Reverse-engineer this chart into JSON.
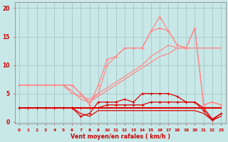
{
  "x": [
    0,
    1,
    2,
    3,
    4,
    5,
    6,
    7,
    8,
    9,
    10,
    11,
    12,
    13,
    14,
    15,
    16,
    17,
    18,
    19,
    20,
    21,
    22,
    23
  ],
  "salmon_line1": [
    6.5,
    6.5,
    6.5,
    6.5,
    6.5,
    6.5,
    6.5,
    5.0,
    3.5,
    5.0,
    10.0,
    11.5,
    13.0,
    13.0,
    13.0,
    16.0,
    18.5,
    16.0,
    13.5,
    13.0,
    16.5,
    3.0,
    3.5,
    3.0
  ],
  "salmon_line2": [
    6.5,
    6.5,
    6.5,
    6.5,
    6.5,
    6.5,
    6.5,
    5.0,
    3.0,
    6.5,
    11.0,
    11.5,
    13.0,
    13.0,
    13.0,
    16.0,
    16.5,
    16.0,
    13.5,
    13.0,
    16.5,
    3.0,
    3.5,
    3.0
  ],
  "salmon_diag1": [
    6.5,
    6.5,
    6.5,
    6.5,
    6.5,
    6.5,
    5.0,
    4.5,
    4.0,
    5.0,
    6.0,
    7.0,
    8.0,
    9.0,
    10.0,
    11.5,
    12.5,
    13.5,
    13.0,
    13.0,
    13.0,
    13.0,
    13.0,
    13.0
  ],
  "salmon_diag2": [
    6.5,
    6.5,
    6.5,
    6.5,
    6.5,
    6.5,
    5.5,
    4.0,
    3.5,
    4.5,
    5.5,
    6.5,
    7.5,
    8.5,
    9.5,
    10.5,
    11.5,
    12.0,
    13.0,
    13.0,
    13.0,
    13.0,
    13.0,
    13.0
  ],
  "red_upper": [
    2.5,
    2.5,
    2.5,
    2.5,
    2.5,
    2.5,
    2.5,
    1.0,
    1.5,
    3.5,
    3.5,
    3.5,
    4.0,
    3.5,
    5.0,
    5.0,
    5.0,
    5.0,
    4.5,
    3.5,
    3.5,
    2.0,
    0.3,
    1.5
  ],
  "red_flat1": [
    2.5,
    2.5,
    2.5,
    2.5,
    2.5,
    2.5,
    2.5,
    2.5,
    2.5,
    2.5,
    2.5,
    2.5,
    2.5,
    2.5,
    2.5,
    2.5,
    2.5,
    2.5,
    2.5,
    2.5,
    2.5,
    2.5,
    2.5,
    2.5
  ],
  "red_flat2": [
    2.5,
    2.5,
    2.5,
    2.5,
    2.5,
    2.5,
    2.5,
    2.5,
    2.5,
    2.5,
    3.0,
    3.0,
    3.0,
    3.0,
    3.0,
    3.5,
    3.5,
    3.5,
    3.5,
    3.5,
    3.5,
    2.5,
    0.5,
    1.5
  ],
  "red_low": [
    2.5,
    2.5,
    2.5,
    2.5,
    2.5,
    2.5,
    2.5,
    1.5,
    1.0,
    2.0,
    2.0,
    2.0,
    2.0,
    2.0,
    2.0,
    2.0,
    2.0,
    2.0,
    2.0,
    2.0,
    2.0,
    1.5,
    0.3,
    1.0
  ],
  "background_color": "#c8e8e8",
  "grid_color": "#aacccc",
  "salmon": "#ff8888",
  "red": "#dd0000",
  "xlabel": "Vent moyen/en rafales ( km/h )",
  "yticks": [
    0,
    5,
    10,
    15,
    20
  ]
}
